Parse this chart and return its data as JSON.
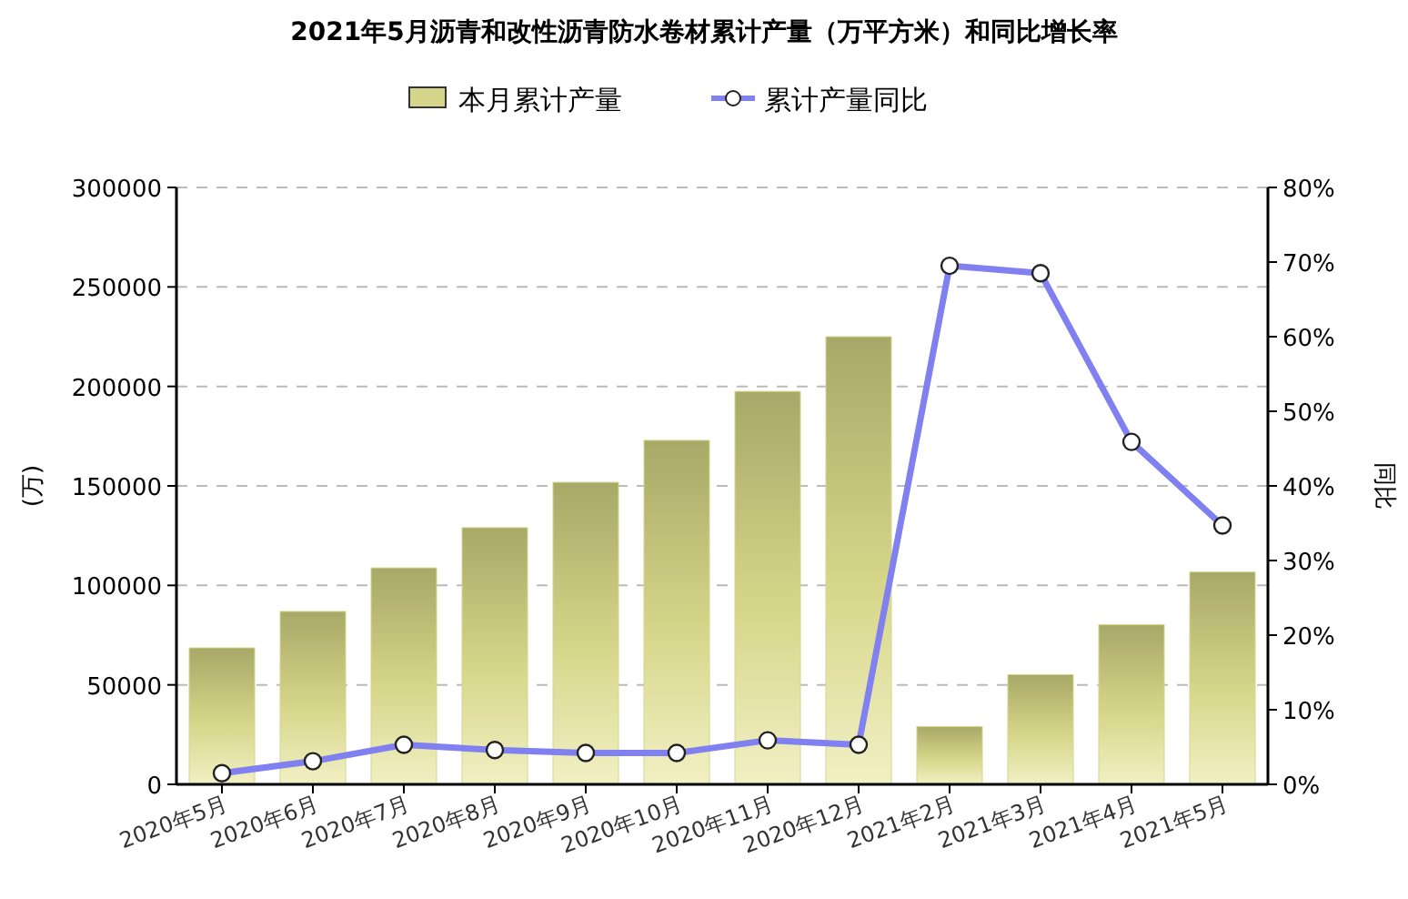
{
  "chart_data": {
    "type": "bar",
    "title": "2021年5月沥青和改性沥青防水卷材累计产量（万平方米）和同比增长率",
    "categories": [
      "2020年5月",
      "2020年6月",
      "2020年7月",
      "2020年8月",
      "2020年9月",
      "2020年10月",
      "2020年11月",
      "2020年12月",
      "2021年2月",
      "2021年3月",
      "2021年4月",
      "2021年5月"
    ],
    "series": [
      {
        "name": "本月累计产量",
        "color": "#d6d68a",
        "values": [
          68600,
          86900,
          108800,
          129000,
          151800,
          172900,
          197500,
          225000,
          29000,
          55100,
          80200,
          106700
        ]
      },
      {
        "name": "累计产量同比",
        "type": "line",
        "axis": "y2",
        "color": "#8080f0",
        "marker": "circle",
        "values": [
          1.5,
          3.1,
          5.3,
          4.6,
          4.2,
          4.2,
          5.9,
          5.3,
          69.5,
          68.5,
          45.9,
          34.7
        ]
      }
    ],
    "ylabel": "(万)",
    "y2label": "同比",
    "ylim": [
      0,
      300000
    ],
    "yticks": [
      0,
      50000,
      100000,
      150000,
      200000,
      250000,
      300000
    ],
    "y2lim": [
      0,
      80
    ],
    "y2ticks": [
      {
        "value": 0,
        "label": "0%"
      },
      {
        "value": 10,
        "label": "10%"
      },
      {
        "value": 20,
        "label": "20%"
      },
      {
        "value": 30,
        "label": "30%"
      },
      {
        "value": 40,
        "label": "40%"
      },
      {
        "value": 50,
        "label": "50%"
      },
      {
        "value": 60,
        "label": "60%"
      },
      {
        "value": 70,
        "label": "70%"
      },
      {
        "value": 80,
        "label": "80%"
      }
    ],
    "grid": "y",
    "legend": "top"
  }
}
